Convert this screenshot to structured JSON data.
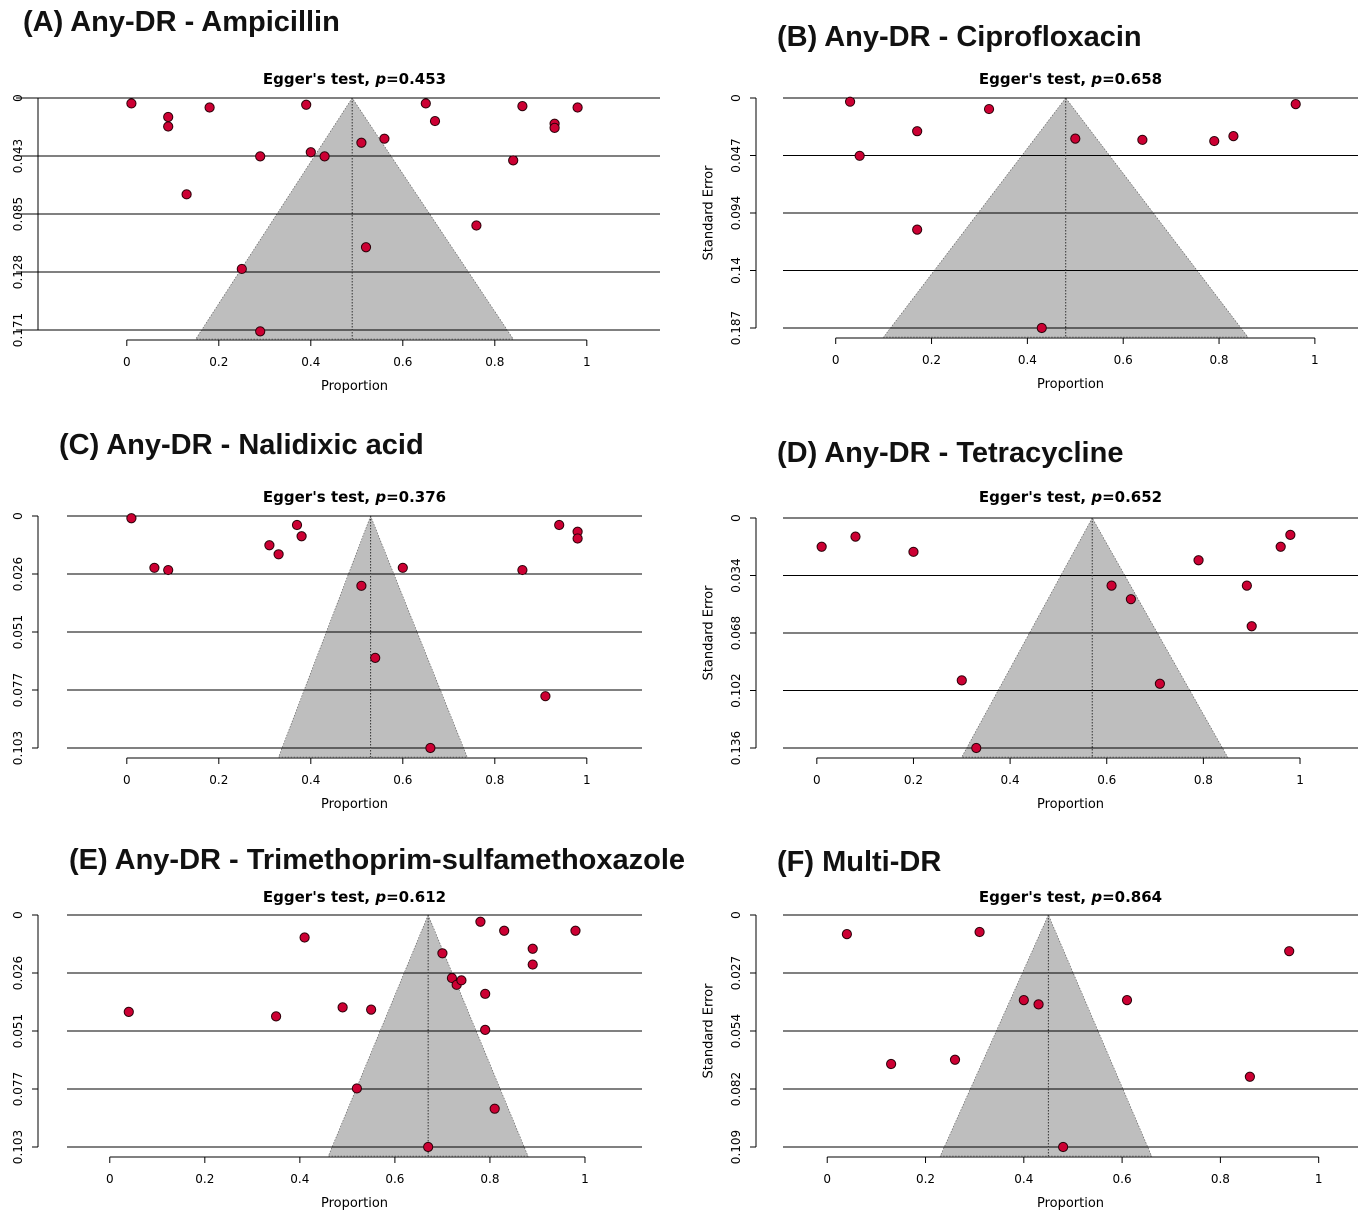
{
  "chart_data": [
    {
      "panel": "A",
      "type": "scatter",
      "title": "(A) Any-DR - Ampicillin",
      "subtitle_prefix": "Egger's test, ",
      "p_label": "p",
      "p_value": "=0.453",
      "xlabel": "Proportion",
      "ylabel": "Standard Error",
      "xlim": [
        -0.13,
        1.12
      ],
      "x_ticks": [
        "0",
        "0.2",
        "0.4",
        "0.6",
        "0.8",
        "1"
      ],
      "y_ticks": [
        "0",
        "0.043",
        "0.085",
        "0.128",
        "0.171"
      ],
      "y_max": 0.171,
      "pooled": 0.49,
      "funnel_base": [
        0.15,
        0.84
      ],
      "points": [
        {
          "x": 0.01,
          "y": 0.004
        },
        {
          "x": 0.09,
          "y": 0.014
        },
        {
          "x": 0.09,
          "y": 0.021
        },
        {
          "x": 0.18,
          "y": 0.007
        },
        {
          "x": 0.39,
          "y": 0.005
        },
        {
          "x": 0.65,
          "y": 0.004
        },
        {
          "x": 0.86,
          "y": 0.006
        },
        {
          "x": 0.98,
          "y": 0.007
        },
        {
          "x": 0.93,
          "y": 0.019
        },
        {
          "x": 0.93,
          "y": 0.022
        },
        {
          "x": 0.67,
          "y": 0.017
        },
        {
          "x": 0.56,
          "y": 0.03
        },
        {
          "x": 0.51,
          "y": 0.033
        },
        {
          "x": 0.4,
          "y": 0.04
        },
        {
          "x": 0.43,
          "y": 0.043
        },
        {
          "x": 0.29,
          "y": 0.043
        },
        {
          "x": 0.84,
          "y": 0.046
        },
        {
          "x": 0.13,
          "y": 0.071
        },
        {
          "x": 0.76,
          "y": 0.094
        },
        {
          "x": 0.52,
          "y": 0.11
        },
        {
          "x": 0.25,
          "y": 0.126
        },
        {
          "x": 0.29,
          "y": 0.172
        }
      ]
    },
    {
      "panel": "B",
      "type": "scatter",
      "title": "(B) Any-DR - Ciprofloxacin",
      "subtitle_prefix": "Egger's test, ",
      "p_label": "p",
      "p_value": "=0.658",
      "xlabel": "Proportion",
      "ylabel": "Standard Error",
      "xlim": [
        -0.11,
        1.09
      ],
      "x_ticks": [
        "0",
        "0.2",
        "0.4",
        "0.6",
        "0.8",
        "1"
      ],
      "y_ticks": [
        "0",
        "0.047",
        "0.094",
        "0.14",
        "0.187"
      ],
      "y_max": 0.187,
      "pooled": 0.48,
      "funnel_base": [
        0.1,
        0.86
      ],
      "points": [
        {
          "x": 0.03,
          "y": 0.003
        },
        {
          "x": 0.32,
          "y": 0.009
        },
        {
          "x": 0.96,
          "y": 0.005
        },
        {
          "x": 0.17,
          "y": 0.027
        },
        {
          "x": 0.5,
          "y": 0.033
        },
        {
          "x": 0.64,
          "y": 0.034
        },
        {
          "x": 0.79,
          "y": 0.035
        },
        {
          "x": 0.83,
          "y": 0.031
        },
        {
          "x": 0.05,
          "y": 0.047
        },
        {
          "x": 0.17,
          "y": 0.107
        },
        {
          "x": 0.43,
          "y": 0.187
        }
      ]
    },
    {
      "panel": "C",
      "type": "scatter",
      "title": "(C) Any-DR - Nalidixic acid",
      "subtitle_prefix": "Egger's test, ",
      "p_label": "p",
      "p_value": "=0.376",
      "xlabel": "Proportion",
      "ylabel": "Standard Error",
      "xlim": [
        -0.13,
        1.12
      ],
      "x_ticks": [
        "0",
        "0.2",
        "0.4",
        "0.6",
        "0.8",
        "1"
      ],
      "y_ticks": [
        "0",
        "0.026",
        "0.051",
        "0.077",
        "0.103"
      ],
      "y_max": 0.103,
      "pooled": 0.53,
      "funnel_base": [
        0.33,
        0.74
      ],
      "points": [
        {
          "x": 0.01,
          "y": 0.001
        },
        {
          "x": 0.37,
          "y": 0.004
        },
        {
          "x": 0.38,
          "y": 0.009
        },
        {
          "x": 0.31,
          "y": 0.013
        },
        {
          "x": 0.33,
          "y": 0.017
        },
        {
          "x": 0.06,
          "y": 0.023
        },
        {
          "x": 0.09,
          "y": 0.024
        },
        {
          "x": 0.6,
          "y": 0.023
        },
        {
          "x": 0.51,
          "y": 0.031
        },
        {
          "x": 0.86,
          "y": 0.024
        },
        {
          "x": 0.94,
          "y": 0.004
        },
        {
          "x": 0.98,
          "y": 0.007
        },
        {
          "x": 0.98,
          "y": 0.01
        },
        {
          "x": 0.54,
          "y": 0.063
        },
        {
          "x": 0.91,
          "y": 0.08
        },
        {
          "x": 0.66,
          "y": 0.103
        }
      ]
    },
    {
      "panel": "D",
      "type": "scatter",
      "title": "(D) Any-DR - Tetracycline",
      "subtitle_prefix": "Egger's test, ",
      "p_label": "p",
      "p_value": "=0.652",
      "xlabel": "Proportion",
      "ylabel": "Standard Error",
      "xlim": [
        -0.07,
        1.12
      ],
      "x_ticks": [
        "0",
        "0.2",
        "0.4",
        "0.6",
        "0.8",
        "1"
      ],
      "y_ticks": [
        "0",
        "0.034",
        "0.068",
        "0.102",
        "0.136"
      ],
      "y_max": 0.136,
      "pooled": 0.57,
      "funnel_base": [
        0.3,
        0.85
      ],
      "points": [
        {
          "x": 0.01,
          "y": 0.017
        },
        {
          "x": 0.08,
          "y": 0.011
        },
        {
          "x": 0.2,
          "y": 0.02
        },
        {
          "x": 0.61,
          "y": 0.04
        },
        {
          "x": 0.65,
          "y": 0.048
        },
        {
          "x": 0.79,
          "y": 0.025
        },
        {
          "x": 0.89,
          "y": 0.04
        },
        {
          "x": 0.96,
          "y": 0.017
        },
        {
          "x": 0.98,
          "y": 0.01
        },
        {
          "x": 0.9,
          "y": 0.064
        },
        {
          "x": 0.3,
          "y": 0.096
        },
        {
          "x": 0.71,
          "y": 0.098
        },
        {
          "x": 0.33,
          "y": 0.136
        }
      ]
    },
    {
      "panel": "E",
      "type": "scatter",
      "title": "(E) Any-DR - Trimethoprim-sulfamethoxazole",
      "subtitle_prefix": "Egger's test, ",
      "p_label": "p",
      "p_value": "=0.612",
      "xlabel": "Proportion",
      "ylabel": "Standard Error",
      "xlim": [
        -0.09,
        1.12
      ],
      "x_ticks": [
        "0",
        "0.2",
        "0.4",
        "0.6",
        "0.8",
        "1"
      ],
      "y_ticks": [
        "0",
        "0.026",
        "0.051",
        "0.077",
        "0.103"
      ],
      "y_max": 0.103,
      "pooled": 0.67,
      "funnel_base": [
        0.46,
        0.88
      ],
      "points": [
        {
          "x": 0.04,
          "y": 0.043
        },
        {
          "x": 0.41,
          "y": 0.01
        },
        {
          "x": 0.35,
          "y": 0.045
        },
        {
          "x": 0.49,
          "y": 0.041
        },
        {
          "x": 0.55,
          "y": 0.042
        },
        {
          "x": 0.7,
          "y": 0.017
        },
        {
          "x": 0.72,
          "y": 0.028
        },
        {
          "x": 0.73,
          "y": 0.031
        },
        {
          "x": 0.74,
          "y": 0.029
        },
        {
          "x": 0.78,
          "y": 0.003
        },
        {
          "x": 0.83,
          "y": 0.007
        },
        {
          "x": 0.79,
          "y": 0.035
        },
        {
          "x": 0.79,
          "y": 0.051
        },
        {
          "x": 0.89,
          "y": 0.015
        },
        {
          "x": 0.89,
          "y": 0.022
        },
        {
          "x": 0.98,
          "y": 0.007
        },
        {
          "x": 0.52,
          "y": 0.077
        },
        {
          "x": 0.81,
          "y": 0.086
        },
        {
          "x": 0.67,
          "y": 0.103
        }
      ]
    },
    {
      "panel": "F",
      "type": "scatter",
      "title": "(F) Multi-DR",
      "subtitle_prefix": "Egger's test, ",
      "p_label": "p",
      "p_value": "=0.864",
      "xlabel": "Proportion",
      "ylabel": "Standard Error",
      "xlim": [
        -0.09,
        1.08
      ],
      "x_ticks": [
        "0",
        "0.2",
        "0.4",
        "0.6",
        "0.8",
        "1"
      ],
      "y_ticks": [
        "0",
        "0.027",
        "0.054",
        "0.082",
        "0.109"
      ],
      "y_max": 0.109,
      "pooled": 0.45,
      "funnel_base": [
        0.23,
        0.66
      ],
      "points": [
        {
          "x": 0.04,
          "y": 0.009
        },
        {
          "x": 0.31,
          "y": 0.008
        },
        {
          "x": 0.94,
          "y": 0.017
        },
        {
          "x": 0.4,
          "y": 0.04
        },
        {
          "x": 0.43,
          "y": 0.042
        },
        {
          "x": 0.61,
          "y": 0.04
        },
        {
          "x": 0.13,
          "y": 0.07
        },
        {
          "x": 0.26,
          "y": 0.068
        },
        {
          "x": 0.86,
          "y": 0.076
        },
        {
          "x": 0.48,
          "y": 0.109
        }
      ]
    }
  ],
  "colors": {
    "funnel_fill": "#bebebe",
    "point_fill": "#cc0033",
    "point_stroke": "#2a0008",
    "line": "#000000"
  }
}
